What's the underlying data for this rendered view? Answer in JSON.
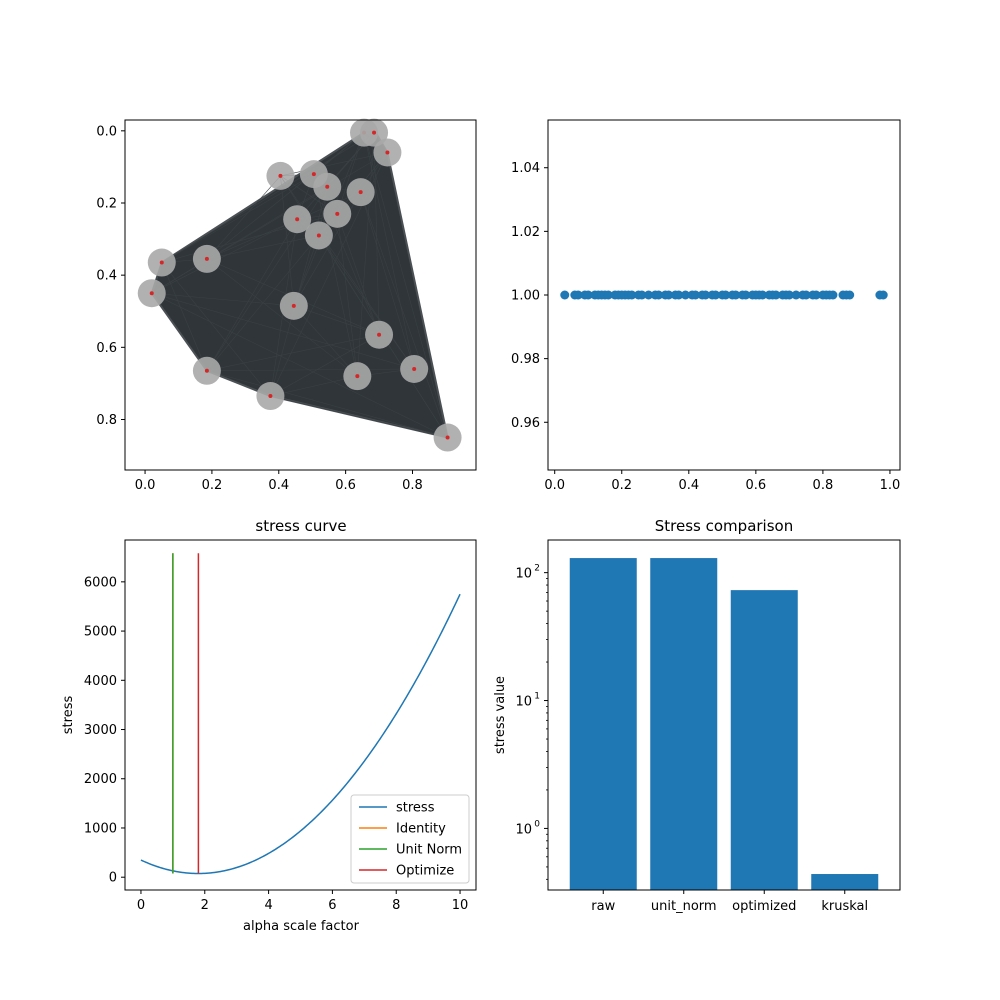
{
  "colors": {
    "stress": "#1f77b4",
    "identity": "#ff7f0e",
    "unit_norm": "#2ca02c",
    "optimize": "#d62728",
    "bar": "#1f77b4",
    "scatter": "#1f77b4",
    "hull_fill": "#2f3538",
    "node_halo": "#a8a8a8",
    "node_core": "#d62728"
  },
  "chart_data": [
    {
      "type": "scatter",
      "panel": "embedding",
      "title": "",
      "xlabel": "",
      "ylabel": "",
      "xlim": [
        -0.06,
        0.99
      ],
      "ylim": [
        0.94,
        -0.03
      ],
      "y_inverted": true,
      "xticks": [
        "0.0",
        "0.2",
        "0.4",
        "0.6",
        "0.8"
      ],
      "xtick_values": [
        0.0,
        0.2,
        0.4,
        0.6,
        0.8
      ],
      "yticks": [
        "0.0",
        "0.2",
        "0.4",
        "0.6",
        "0.8"
      ],
      "ytick_values": [
        0.0,
        0.2,
        0.4,
        0.6,
        0.8
      ],
      "hull": [
        [
          0.655,
          0.005
        ],
        [
          0.69,
          0.005
        ],
        [
          0.725,
          0.06
        ],
        [
          0.905,
          0.85
        ],
        [
          0.375,
          0.735
        ],
        [
          0.185,
          0.665
        ],
        [
          0.02,
          0.45
        ],
        [
          0.05,
          0.365
        ]
      ],
      "points": [
        {
          "x": 0.655,
          "y": 0.005
        },
        {
          "x": 0.685,
          "y": 0.005
        },
        {
          "x": 0.725,
          "y": 0.06
        },
        {
          "x": 0.405,
          "y": 0.125
        },
        {
          "x": 0.505,
          "y": 0.12
        },
        {
          "x": 0.545,
          "y": 0.155
        },
        {
          "x": 0.645,
          "y": 0.17
        },
        {
          "x": 0.575,
          "y": 0.23
        },
        {
          "x": 0.455,
          "y": 0.245
        },
        {
          "x": 0.52,
          "y": 0.29
        },
        {
          "x": 0.185,
          "y": 0.355
        },
        {
          "x": 0.05,
          "y": 0.365
        },
        {
          "x": 0.02,
          "y": 0.45
        },
        {
          "x": 0.445,
          "y": 0.485
        },
        {
          "x": 0.7,
          "y": 0.565
        },
        {
          "x": 0.185,
          "y": 0.665
        },
        {
          "x": 0.805,
          "y": 0.66
        },
        {
          "x": 0.635,
          "y": 0.68
        },
        {
          "x": 0.375,
          "y": 0.735
        },
        {
          "x": 0.905,
          "y": 0.85
        }
      ]
    },
    {
      "type": "scatter",
      "panel": "1d",
      "title": "",
      "xlabel": "",
      "ylabel": "",
      "xlim": [
        -0.02,
        1.03
      ],
      "ylim": [
        0.945,
        1.055
      ],
      "xticks": [
        "0.0",
        "0.2",
        "0.4",
        "0.6",
        "0.8",
        "1.0"
      ],
      "xtick_values": [
        0.0,
        0.2,
        0.4,
        0.6,
        0.8,
        1.0
      ],
      "yticks": [
        "0.96",
        "0.98",
        "1.00",
        "1.02",
        "1.04"
      ],
      "ytick_values": [
        0.96,
        0.98,
        1.0,
        1.02,
        1.04
      ],
      "y_value": 1.0,
      "x": [
        0.03,
        0.06,
        0.07,
        0.09,
        0.1,
        0.12,
        0.13,
        0.14,
        0.15,
        0.16,
        0.18,
        0.19,
        0.2,
        0.21,
        0.22,
        0.23,
        0.25,
        0.26,
        0.28,
        0.3,
        0.31,
        0.33,
        0.34,
        0.36,
        0.37,
        0.39,
        0.41,
        0.42,
        0.44,
        0.45,
        0.47,
        0.48,
        0.5,
        0.51,
        0.53,
        0.54,
        0.56,
        0.57,
        0.59,
        0.6,
        0.61,
        0.62,
        0.64,
        0.65,
        0.66,
        0.68,
        0.69,
        0.7,
        0.72,
        0.74,
        0.75,
        0.77,
        0.78,
        0.8,
        0.81,
        0.82,
        0.83,
        0.86,
        0.87,
        0.88,
        0.97,
        0.98
      ]
    },
    {
      "type": "line",
      "panel": "stress_curve",
      "title": "stress curve",
      "xlabel": "alpha scale factor",
      "ylabel": "stress",
      "xlim": [
        -0.5,
        10.5
      ],
      "ylim": [
        -260,
        6850
      ],
      "xticks": [
        "0",
        "2",
        "4",
        "6",
        "8",
        "10"
      ],
      "xtick_values": [
        0,
        2,
        4,
        6,
        8,
        10
      ],
      "yticks": [
        "0",
        "1000",
        "2000",
        "3000",
        "4000",
        "5000",
        "6000"
      ],
      "ytick_values": [
        0,
        1000,
        2000,
        3000,
        4000,
        5000,
        6000
      ],
      "stress_model": {
        "a": 75,
        "b": 8.44,
        "c": 1.8
      },
      "series": [
        {
          "name": "stress",
          "kind": "curve",
          "x_range": [
            0,
            10
          ]
        },
        {
          "name": "Identity",
          "kind": "vline",
          "x": 1.0,
          "y_range": [
            75,
            6580
          ]
        },
        {
          "name": "Unit Norm",
          "kind": "vline",
          "x": 1.0,
          "y_range": [
            75,
            6580
          ]
        },
        {
          "name": "Optimize",
          "kind": "vline",
          "x": 1.8,
          "y_range": [
            75,
            6580
          ]
        }
      ],
      "legend": "lower-right"
    },
    {
      "type": "bar",
      "panel": "stress_comparison",
      "title": "Stress comparison",
      "xlabel": "",
      "ylabel": "stress value",
      "y_scale": "log",
      "ylim": [
        0.33,
        180
      ],
      "categories": [
        "raw",
        "unit_norm",
        "optimized",
        "kruskal"
      ],
      "values": [
        130,
        130,
        73,
        0.44
      ],
      "yticks": [
        "10",
        "10",
        "10"
      ],
      "ytick_exponents": [
        "0",
        "1",
        "2"
      ],
      "ytick_values": [
        1,
        10,
        100
      ]
    }
  ]
}
